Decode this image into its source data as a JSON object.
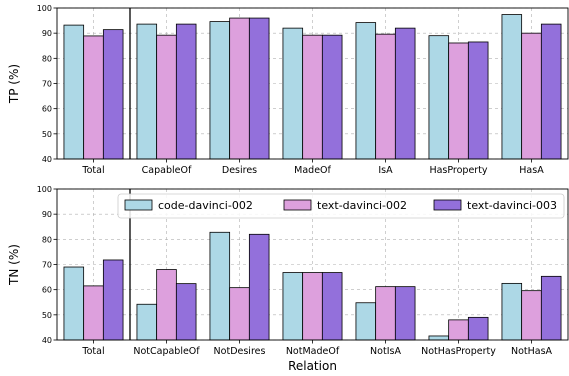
{
  "chart_data": [
    {
      "type": "bar",
      "name": "top",
      "categories": [
        "Total",
        "CapableOf",
        "Desires",
        "MadeOf",
        "IsA",
        "HasProperty",
        "HasA"
      ],
      "series": [
        {
          "name": "code-davinci-002",
          "color": "#add8e6",
          "values": [
            93.2,
            93.6,
            94.6,
            92.0,
            94.2,
            89.0,
            97.4
          ]
        },
        {
          "name": "text-davinci-002",
          "color": "#dda0dd",
          "values": [
            88.9,
            89.2,
            96.0,
            89.2,
            89.6,
            86.1,
            90.0
          ]
        },
        {
          "name": "text-davinci-003",
          "color": "#9370db",
          "values": [
            91.4,
            93.6,
            96.0,
            89.2,
            92.0,
            86.5,
            93.6
          ]
        }
      ],
      "xlabel": "",
      "ylabel": "TP (%)",
      "ylim": [
        40,
        100
      ],
      "yticks": [
        40,
        50,
        60,
        70,
        80,
        90,
        100
      ],
      "grid": true,
      "separator_after_category": 0
    },
    {
      "type": "bar",
      "name": "bottom",
      "categories": [
        "Total",
        "NotCapableOf",
        "NotDesires",
        "NotMadeOf",
        "NotIsA",
        "NotHasProperty",
        "NotHasA"
      ],
      "series": [
        {
          "name": "code-davinci-002",
          "color": "#add8e6",
          "values": [
            69.0,
            54.2,
            82.8,
            66.8,
            54.8,
            41.6,
            62.5
          ]
        },
        {
          "name": "text-davinci-002",
          "color": "#dda0dd",
          "values": [
            61.5,
            68.0,
            60.8,
            66.8,
            61.2,
            48.0,
            59.6
          ]
        },
        {
          "name": "text-davinci-003",
          "color": "#9370db",
          "values": [
            71.8,
            62.4,
            82.0,
            66.8,
            61.2,
            49.0,
            65.3
          ]
        }
      ],
      "xlabel": "Relation",
      "ylabel": "TN (%)",
      "ylim": [
        40,
        100
      ],
      "yticks": [
        40,
        50,
        60,
        70,
        80,
        90,
        100
      ],
      "grid": true,
      "legend": "upper-center",
      "separator_after_category": 0
    }
  ]
}
